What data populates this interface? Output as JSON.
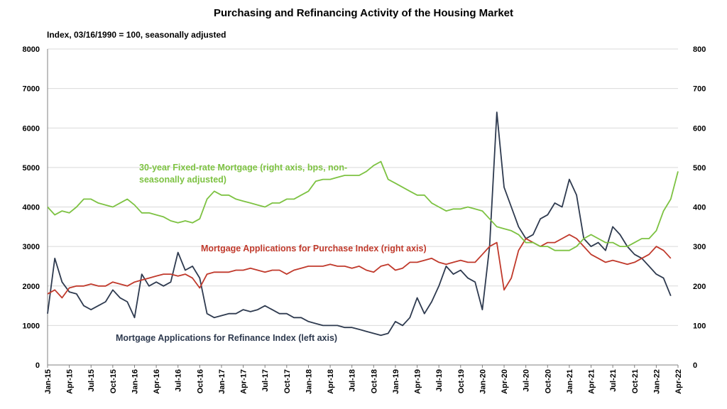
{
  "chart_data": {
    "type": "line",
    "title": "Purchasing and Refinancing Activity of the Housing Market",
    "subtitle": "Index, 03/16/1990 = 100, seasonally adjusted",
    "left_axis": {
      "min": 0,
      "max": 8000,
      "ticks": [
        "0",
        "1000",
        "2000",
        "3000",
        "4000",
        "5000",
        "6000",
        "7000",
        "8000"
      ]
    },
    "right_axis": {
      "min": 0,
      "max": 800,
      "ticks": [
        "0",
        "100",
        "200",
        "300",
        "400",
        "500",
        "600",
        "700",
        "800"
      ]
    },
    "x_axis": {
      "start": "2015-01",
      "end": "2022-04",
      "ticks": [
        "Jan-15",
        "Apr-15",
        "Jul-15",
        "Oct-15",
        "Jan-16",
        "Apr-16",
        "Jul-16",
        "Oct-16",
        "Jan-17",
        "Apr-17",
        "Jul-17",
        "Oct-17",
        "Jan-18",
        "Apr-18",
        "Jul-18",
        "Oct-18",
        "Jan-19",
        "Apr-19",
        "Jul-19",
        "Oct-19",
        "Jan-20",
        "Apr-20",
        "Jul-20",
        "Oct-20",
        "Jan-21",
        "Apr-21",
        "Jul-21",
        "Oct-21",
        "Jan-22",
        "Apr-22"
      ]
    },
    "grid": "horizontal",
    "series": [
      {
        "name": "Mortgage Applications for Refinance Index (left axis)",
        "label_lines": [
          "Mortgage Applications for Refinance Index (left axis)"
        ],
        "axis": "left",
        "color": "#2E3A4F",
        "x": [
          "2015-01",
          "2015-02",
          "2015-03",
          "2015-04",
          "2015-05",
          "2015-06",
          "2015-07",
          "2015-08",
          "2015-09",
          "2015-10",
          "2015-11",
          "2015-12",
          "2016-01",
          "2016-02",
          "2016-03",
          "2016-04",
          "2016-05",
          "2016-06",
          "2016-07",
          "2016-08",
          "2016-09",
          "2016-10",
          "2016-11",
          "2016-12",
          "2017-01",
          "2017-02",
          "2017-03",
          "2017-04",
          "2017-05",
          "2017-06",
          "2017-07",
          "2017-08",
          "2017-09",
          "2017-10",
          "2017-11",
          "2017-12",
          "2018-01",
          "2018-02",
          "2018-03",
          "2018-04",
          "2018-05",
          "2018-06",
          "2018-07",
          "2018-08",
          "2018-09",
          "2018-10",
          "2018-11",
          "2018-12",
          "2019-01",
          "2019-02",
          "2019-03",
          "2019-04",
          "2019-05",
          "2019-06",
          "2019-07",
          "2019-08",
          "2019-09",
          "2019-10",
          "2019-11",
          "2019-12",
          "2020-01",
          "2020-02",
          "2020-03",
          "2020-04",
          "2020-05",
          "2020-06",
          "2020-07",
          "2020-08",
          "2020-09",
          "2020-10",
          "2020-11",
          "2020-12",
          "2021-01",
          "2021-02",
          "2021-03",
          "2021-04",
          "2021-05",
          "2021-06",
          "2021-07",
          "2021-08",
          "2021-09",
          "2021-10",
          "2021-11",
          "2021-12",
          "2022-01",
          "2022-02",
          "2022-03"
        ],
        "values": [
          1300,
          2700,
          2100,
          1850,
          1800,
          1500,
          1400,
          1500,
          1600,
          1900,
          1700,
          1600,
          1200,
          2300,
          2000,
          2100,
          2000,
          2100,
          2850,
          2400,
          2500,
          2200,
          1300,
          1200,
          1250,
          1300,
          1300,
          1400,
          1350,
          1400,
          1500,
          1400,
          1300,
          1300,
          1200,
          1200,
          1100,
          1050,
          1000,
          1000,
          1000,
          950,
          950,
          900,
          850,
          800,
          750,
          800,
          1100,
          1000,
          1200,
          1700,
          1300,
          1600,
          2000,
          2500,
          2300,
          2400,
          2200,
          2100,
          1400,
          3000,
          6400,
          4500,
          4000,
          3500,
          3200,
          3300,
          3700,
          3800,
          4100,
          4000,
          4700,
          4300,
          3200,
          3000,
          3100,
          2900,
          3500,
          3300,
          3000,
          2800,
          2700,
          2500,
          2300,
          2200,
          1750
        ]
      },
      {
        "name": "Mortgage Applications for Purchase Index (right axis)",
        "label_lines": [
          "Mortgage Applications for Purchase Index (right axis)"
        ],
        "axis": "right",
        "color": "#C0392B",
        "x": [
          "2015-01",
          "2015-02",
          "2015-03",
          "2015-04",
          "2015-05",
          "2015-06",
          "2015-07",
          "2015-08",
          "2015-09",
          "2015-10",
          "2015-11",
          "2015-12",
          "2016-01",
          "2016-02",
          "2016-03",
          "2016-04",
          "2016-05",
          "2016-06",
          "2016-07",
          "2016-08",
          "2016-09",
          "2016-10",
          "2016-11",
          "2016-12",
          "2017-01",
          "2017-02",
          "2017-03",
          "2017-04",
          "2017-05",
          "2017-06",
          "2017-07",
          "2017-08",
          "2017-09",
          "2017-10",
          "2017-11",
          "2017-12",
          "2018-01",
          "2018-02",
          "2018-03",
          "2018-04",
          "2018-05",
          "2018-06",
          "2018-07",
          "2018-08",
          "2018-09",
          "2018-10",
          "2018-11",
          "2018-12",
          "2019-01",
          "2019-02",
          "2019-03",
          "2019-04",
          "2019-05",
          "2019-06",
          "2019-07",
          "2019-08",
          "2019-09",
          "2019-10",
          "2019-11",
          "2019-12",
          "2020-01",
          "2020-02",
          "2020-03",
          "2020-04",
          "2020-05",
          "2020-06",
          "2020-07",
          "2020-08",
          "2020-09",
          "2020-10",
          "2020-11",
          "2020-12",
          "2021-01",
          "2021-02",
          "2021-03",
          "2021-04",
          "2021-05",
          "2021-06",
          "2021-07",
          "2021-08",
          "2021-09",
          "2021-10",
          "2021-11",
          "2021-12",
          "2022-01",
          "2022-02",
          "2022-03"
        ],
        "values": [
          180,
          190,
          170,
          195,
          200,
          200,
          205,
          200,
          200,
          210,
          205,
          200,
          210,
          215,
          220,
          225,
          230,
          230,
          225,
          230,
          220,
          195,
          230,
          235,
          235,
          235,
          240,
          240,
          245,
          240,
          235,
          240,
          240,
          230,
          240,
          245,
          250,
          250,
          250,
          255,
          250,
          250,
          245,
          250,
          240,
          235,
          250,
          255,
          240,
          245,
          260,
          260,
          265,
          270,
          260,
          255,
          260,
          265,
          260,
          260,
          280,
          300,
          310,
          190,
          220,
          290,
          320,
          310,
          300,
          310,
          310,
          320,
          330,
          320,
          300,
          280,
          270,
          260,
          265,
          260,
          255,
          260,
          270,
          280,
          300,
          290,
          270
        ]
      },
      {
        "name": "30-year Fixed-rate Mortgage (right axis, bps, non-seasonally adjusted)",
        "label_lines": [
          "30-year Fixed-rate Mortgage (right axis, bps, non-",
          "seasonally adjusted)"
        ],
        "axis": "right",
        "color": "#7DC242",
        "x": [
          "2015-01",
          "2015-02",
          "2015-03",
          "2015-04",
          "2015-05",
          "2015-06",
          "2015-07",
          "2015-08",
          "2015-09",
          "2015-10",
          "2015-11",
          "2015-12",
          "2016-01",
          "2016-02",
          "2016-03",
          "2016-04",
          "2016-05",
          "2016-06",
          "2016-07",
          "2016-08",
          "2016-09",
          "2016-10",
          "2016-11",
          "2016-12",
          "2017-01",
          "2017-02",
          "2017-03",
          "2017-04",
          "2017-05",
          "2017-06",
          "2017-07",
          "2017-08",
          "2017-09",
          "2017-10",
          "2017-11",
          "2017-12",
          "2018-01",
          "2018-02",
          "2018-03",
          "2018-04",
          "2018-05",
          "2018-06",
          "2018-07",
          "2018-08",
          "2018-09",
          "2018-10",
          "2018-11",
          "2018-12",
          "2019-01",
          "2019-02",
          "2019-03",
          "2019-04",
          "2019-05",
          "2019-06",
          "2019-07",
          "2019-08",
          "2019-09",
          "2019-10",
          "2019-11",
          "2019-12",
          "2020-01",
          "2020-02",
          "2020-03",
          "2020-04",
          "2020-05",
          "2020-06",
          "2020-07",
          "2020-08",
          "2020-09",
          "2020-10",
          "2020-11",
          "2020-12",
          "2021-01",
          "2021-02",
          "2021-03",
          "2021-04",
          "2021-05",
          "2021-06",
          "2021-07",
          "2021-08",
          "2021-09",
          "2021-10",
          "2021-11",
          "2021-12",
          "2022-01",
          "2022-02",
          "2022-03",
          "2022-04"
        ],
        "values": [
          400,
          380,
          390,
          385,
          400,
          420,
          420,
          410,
          405,
          400,
          410,
          420,
          405,
          385,
          385,
          380,
          375,
          365,
          360,
          365,
          360,
          370,
          420,
          440,
          430,
          430,
          420,
          415,
          410,
          405,
          400,
          410,
          410,
          420,
          420,
          430,
          440,
          465,
          470,
          470,
          475,
          480,
          480,
          480,
          490,
          505,
          515,
          470,
          460,
          450,
          440,
          430,
          430,
          410,
          400,
          390,
          395,
          395,
          400,
          395,
          390,
          370,
          350,
          345,
          340,
          330,
          310,
          310,
          300,
          300,
          290,
          290,
          290,
          300,
          320,
          330,
          320,
          310,
          310,
          300,
          300,
          310,
          320,
          320,
          340,
          390,
          420,
          490
        ]
      }
    ]
  }
}
